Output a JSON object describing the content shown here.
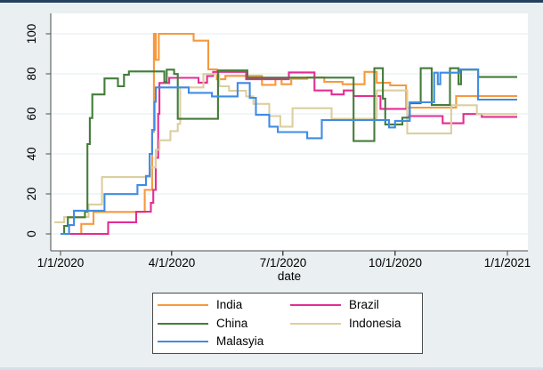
{
  "window": {
    "background": "#eaeff1",
    "top_strip_color": "#24405e",
    "bottom_strip_color": "#cfe2ec"
  },
  "chart_data": {
    "type": "line",
    "step_interpolation": true,
    "title": "",
    "xlabel": "date",
    "ylabel": "",
    "x_tick_labels": [
      "1/1/2020",
      "4/1/2020",
      "7/1/2020",
      "10/1/2020",
      "1/1/2021"
    ],
    "x_ticks_days": [
      0,
      91,
      182,
      274,
      366
    ],
    "x_unit": "days since 1/1/2020; axis spans 1/1/2020 to 1/1/2021",
    "y_ticks": [
      0,
      20,
      40,
      60,
      80,
      100
    ],
    "y_tick_labels": [
      "0",
      "20",
      "40",
      "60",
      "80",
      "100"
    ],
    "ylim": [
      -8.4,
      110
    ],
    "grid": true,
    "legend_position": "bottom",
    "plot_colors": {
      "plot_bg": "#ffffff",
      "grid": "#e2ecf1",
      "axis": "#4c4c4c"
    },
    "series": [
      {
        "name": "India",
        "color": "#f6993d",
        "points": [
          [
            9,
            0
          ],
          [
            17,
            5
          ],
          [
            27,
            11
          ],
          [
            69,
            22
          ],
          [
            75,
            51
          ],
          [
            76.5,
            100
          ],
          [
            78,
            87
          ],
          [
            80.5,
            100
          ],
          [
            109,
            96.6
          ],
          [
            121,
            82.2
          ],
          [
            128,
            77.3
          ],
          [
            135,
            79
          ],
          [
            165,
            74.5
          ],
          [
            176,
            77.5
          ],
          [
            181,
            74.8
          ],
          [
            189,
            77.5
          ],
          [
            202,
            78.2
          ],
          [
            216,
            76
          ],
          [
            231,
            74.8
          ],
          [
            249,
            81
          ],
          [
            259,
            75.5
          ],
          [
            270,
            74.2
          ],
          [
            283,
            63.1
          ],
          [
            324,
            68.9
          ],
          [
            374,
            68.9
          ]
        ]
      },
      {
        "name": "Brazil",
        "color": "#e42d92",
        "points": [
          [
            5,
            0
          ],
          [
            39,
            5.8
          ],
          [
            62,
            11.1
          ],
          [
            74,
            15.5
          ],
          [
            76,
            22
          ],
          [
            78,
            38
          ],
          [
            80,
            60
          ],
          [
            81,
            75.4
          ],
          [
            89,
            78
          ],
          [
            113,
            75.6
          ],
          [
            120,
            78.9
          ],
          [
            125,
            81
          ],
          [
            152,
            77.3
          ],
          [
            187,
            80.7
          ],
          [
            208,
            71.7
          ],
          [
            222,
            69.7
          ],
          [
            232,
            71.7
          ],
          [
            240,
            68.9
          ],
          [
            262,
            62.5
          ],
          [
            284,
            58.9
          ],
          [
            313,
            55.3
          ],
          [
            330,
            59.9
          ],
          [
            345,
            58.5
          ],
          [
            374,
            58.5
          ]
        ]
      },
      {
        "name": "Indonesia",
        "color": "#dbcfa0",
        "points": [
          [
            -5,
            5.8
          ],
          [
            3,
            8.4
          ],
          [
            23,
            14.7
          ],
          [
            34,
            28.4
          ],
          [
            74,
            33.2
          ],
          [
            78,
            42
          ],
          [
            81,
            46.8
          ],
          [
            90,
            51.4
          ],
          [
            96,
            55
          ],
          [
            98,
            73.2
          ],
          [
            117,
            79.9
          ],
          [
            130,
            73.8
          ],
          [
            138,
            71.5
          ],
          [
            152,
            68.7
          ],
          [
            158,
            65
          ],
          [
            171,
            58.9
          ],
          [
            180,
            53.6
          ],
          [
            190,
            62.8
          ],
          [
            222,
            57.5
          ],
          [
            259,
            71.7
          ],
          [
            284,
            50.2
          ],
          [
            320,
            64.3
          ],
          [
            341,
            59.9
          ],
          [
            374,
            59.9
          ]
        ]
      },
      {
        "name": "China",
        "color": "#447c3a",
        "points": [
          [
            1,
            0
          ],
          [
            3,
            4
          ],
          [
            6,
            8.3
          ],
          [
            20,
            11.1
          ],
          [
            22,
            44.9
          ],
          [
            24,
            57.9
          ],
          [
            26,
            69.7
          ],
          [
            36,
            77.7
          ],
          [
            47,
            73.8
          ],
          [
            52,
            79.5
          ],
          [
            56,
            81.2
          ],
          [
            85,
            76
          ],
          [
            87,
            82.1
          ],
          [
            93,
            79.9
          ],
          [
            96,
            57.5
          ],
          [
            129,
            81.7
          ],
          [
            153,
            78.1
          ],
          [
            240,
            46.4
          ],
          [
            257,
            82.8
          ],
          [
            264,
            67.6
          ],
          [
            266,
            54.7
          ],
          [
            280,
            58.1
          ],
          [
            286,
            65.3
          ],
          [
            295,
            82.8
          ],
          [
            304,
            64.4
          ],
          [
            319,
            82.8
          ],
          [
            326,
            74.8
          ],
          [
            328,
            82.1
          ],
          [
            342,
            78.4
          ],
          [
            374,
            78.4
          ]
        ]
      },
      {
        "name": "Malasyia",
        "color": "#3f8ce4",
        "points": [
          [
            0,
            0
          ],
          [
            7,
            4.4
          ],
          [
            11,
            11.6
          ],
          [
            36,
            19.9
          ],
          [
            63,
            24.4
          ],
          [
            70,
            29
          ],
          [
            73,
            40
          ],
          [
            75,
            52
          ],
          [
            77,
            66
          ],
          [
            78,
            73.2
          ],
          [
            105,
            70.5
          ],
          [
            124,
            68.7
          ],
          [
            145,
            75.4
          ],
          [
            155,
            68
          ],
          [
            160,
            59.5
          ],
          [
            171,
            53.6
          ],
          [
            178,
            50.9
          ],
          [
            202,
            47.8
          ],
          [
            214,
            56.9
          ],
          [
            269,
            53.2
          ],
          [
            274,
            56.5
          ],
          [
            286,
            65.8
          ],
          [
            306,
            80.6
          ],
          [
            309,
            74.8
          ],
          [
            311,
            80.6
          ],
          [
            327,
            82.2
          ],
          [
            342,
            67.1
          ],
          [
            374,
            67.1
          ]
        ]
      }
    ]
  },
  "legend": {
    "items": [
      {
        "label": "India",
        "color": "#f6993d"
      },
      {
        "label": "Brazil",
        "color": "#e42d92"
      },
      {
        "label": "China",
        "color": "#447c3a"
      },
      {
        "label": "Indonesia",
        "color": "#dbcfa0"
      },
      {
        "label": "Malasyia",
        "color": "#3f8ce4"
      }
    ]
  }
}
